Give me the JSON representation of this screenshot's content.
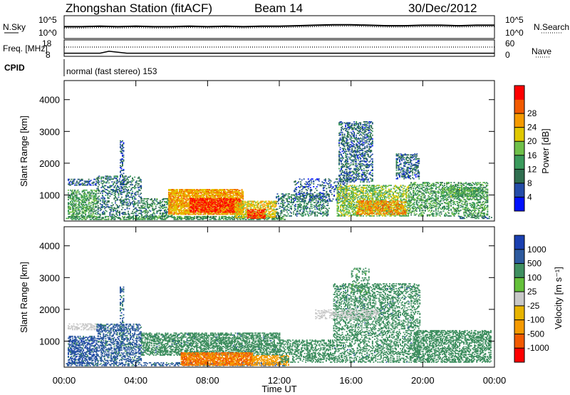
{
  "header": {
    "station": "Zhongshan Station (fitACF)",
    "beam": "Beam 14",
    "date": "30/Dec/2012"
  },
  "chart_data": [
    {
      "type": "line",
      "panel": "noise",
      "ylabel_left": "N.Sky",
      "ylabel_right": "N.Search",
      "yticks_left": [
        "10^5",
        "10^0"
      ],
      "yticks_right": [
        "10^5",
        "10^0"
      ],
      "series": [
        {
          "name": "N.Sky",
          "style": "solid",
          "x": [
            0,
            1,
            2,
            3,
            4,
            5,
            6,
            7,
            8,
            9,
            10,
            11,
            12,
            13,
            14,
            15,
            16,
            17,
            18,
            19,
            20,
            21,
            22,
            23,
            24
          ],
          "values": [
            2.6,
            2.6,
            2.7,
            2.6,
            2.7,
            2.6,
            2.6,
            2.7,
            2.6,
            2.7,
            2.6,
            2.7,
            2.7,
            2.8,
            2.9,
            3.0,
            3.0,
            2.9,
            2.8,
            2.8,
            2.9,
            2.9,
            2.8,
            2.9,
            2.9
          ]
        },
        {
          "name": "N.Search",
          "style": "dotted",
          "x": [
            0,
            1,
            2,
            3,
            4,
            5,
            6,
            7,
            8,
            9,
            10,
            11,
            12,
            13,
            14,
            15,
            16,
            17,
            18,
            19,
            20,
            21,
            22,
            23,
            24
          ],
          "values": [
            2.3,
            2.3,
            2.4,
            2.3,
            2.4,
            2.3,
            2.3,
            2.4,
            2.3,
            2.4,
            2.3,
            2.4,
            2.4,
            2.5,
            2.6,
            2.7,
            2.7,
            2.6,
            2.5,
            2.5,
            2.6,
            2.6,
            2.5,
            2.6,
            2.6
          ]
        }
      ]
    },
    {
      "type": "line",
      "panel": "frequency",
      "ylabel_left": "Freq. [MHz]",
      "ylabel_right": "Nave",
      "yticks_left": [
        "18",
        "8"
      ],
      "yticks_right": [
        "60",
        "0"
      ],
      "series": [
        {
          "name": "Freq.",
          "style": "solid",
          "x": [
            0,
            2,
            2.5,
            3,
            3.5,
            4,
            12,
            24
          ],
          "values": [
            9.4,
            9.4,
            11.0,
            10.2,
            9.4,
            9.4,
            9.4,
            9.4
          ]
        },
        {
          "name": "Nave",
          "style": "dotted",
          "x": [
            0,
            24
          ],
          "values": [
            39,
            39
          ]
        }
      ]
    },
    {
      "type": "heatmap",
      "panel": "cpid",
      "label": "CPID",
      "text": "normal (fast stereo) 153"
    },
    {
      "type": "heatmap",
      "panel": "power",
      "ylabel": "Slant Range [km]",
      "ylim": [
        180,
        4600
      ],
      "yticks": [
        "1000",
        "2000",
        "3000",
        "4000"
      ],
      "colorbar": {
        "label": "Power [dB]",
        "ticks": [
          "4",
          "8",
          "12",
          "16",
          "20",
          "24",
          "28"
        ],
        "range": [
          0,
          30
        ],
        "colors": [
          "#0011ff",
          "#244ca8",
          "#2f6e4f",
          "#3a9a5c",
          "#6fc04a",
          "#e0c800",
          "#f59a00",
          "#f25a00",
          "#ff0000"
        ]
      },
      "regions": [
        {
          "t": [
            0.1,
            12.3
          ],
          "r": [
            220,
            330
          ],
          "v": 11,
          "d": 0.6
        },
        {
          "t": [
            0.2,
            1.8
          ],
          "r": [
            300,
            1150
          ],
          "v": 12,
          "d": 0.5
        },
        {
          "t": [
            0.2,
            1.9
          ],
          "r": [
            1300,
            1500
          ],
          "v": 6,
          "d": 0.45
        },
        {
          "t": [
            1.8,
            4.3
          ],
          "r": [
            350,
            1600
          ],
          "v": 8,
          "d": 0.3
        },
        {
          "t": [
            3.1,
            3.3
          ],
          "r": [
            1100,
            2700
          ],
          "v": 6,
          "d": 0.35
        },
        {
          "t": [
            4.3,
            6.0
          ],
          "r": [
            300,
            900
          ],
          "v": 10,
          "d": 0.35
        },
        {
          "t": [
            5.8,
            10.0
          ],
          "r": [
            380,
            1180
          ],
          "v": 21,
          "d": 0.8
        },
        {
          "t": [
            7.0,
            9.8
          ],
          "r": [
            450,
            900
          ],
          "v": 27,
          "d": 0.7
        },
        {
          "t": [
            9.5,
            11.8
          ],
          "r": [
            280,
            800
          ],
          "v": 19,
          "d": 0.6
        },
        {
          "t": [
            10.2,
            11.2
          ],
          "r": [
            260,
            560
          ],
          "v": 26,
          "d": 0.7
        },
        {
          "t": [
            11.8,
            14.8
          ],
          "r": [
            330,
            1050
          ],
          "v": 9,
          "d": 0.35
        },
        {
          "t": [
            12.8,
            15.8
          ],
          "r": [
            800,
            1500
          ],
          "v": 6,
          "d": 0.22
        },
        {
          "t": [
            15.2,
            19.2
          ],
          "r": [
            330,
            1300
          ],
          "v": 15,
          "d": 0.5
        },
        {
          "t": [
            16.3,
            19.0
          ],
          "r": [
            380,
            820
          ],
          "v": 22,
          "d": 0.55
        },
        {
          "t": [
            15.3,
            17.2
          ],
          "r": [
            1400,
            3300
          ],
          "v": 7,
          "d": 0.4
        },
        {
          "t": [
            18.5,
            19.8
          ],
          "r": [
            1500,
            2300
          ],
          "v": 7,
          "d": 0.45
        },
        {
          "t": [
            19.2,
            23.6
          ],
          "r": [
            330,
            1400
          ],
          "v": 12,
          "d": 0.4
        },
        {
          "t": [
            21.0,
            23.2
          ],
          "r": [
            950,
            1250
          ],
          "v": 13,
          "d": 0.55
        },
        {
          "t": [
            22.0,
            23.8
          ],
          "r": [
            250,
            330
          ],
          "v": 8,
          "d": 0.4
        }
      ]
    },
    {
      "type": "heatmap",
      "panel": "velocity",
      "ylabel": "Slant Range [km]",
      "xlabel": "Time UT",
      "xticks": [
        "00:00",
        "04:00",
        "08:00",
        "12:00",
        "16:00",
        "20:00",
        "00:00"
      ],
      "ylim": [
        180,
        4600
      ],
      "yticks": [
        "1000",
        "2000",
        "3000",
        "4000"
      ],
      "colorbar": {
        "label": "Velocity [m s⁻¹]",
        "ticks": [
          "-1000",
          "-500",
          "-100",
          "-25",
          "25",
          "100",
          "500",
          "1000"
        ],
        "range": [
          -1250,
          1250
        ],
        "colors": [
          "#ff0000",
          "#f25a00",
          "#f59a00",
          "#e8b400",
          "#c8c8c8",
          "#64c03a",
          "#3f8f60",
          "#2d5a9e",
          "#1a3fb0"
        ]
      },
      "regions": [
        {
          "t": [
            0.1,
            12.3
          ],
          "r": [
            220,
            330
          ],
          "v": 700,
          "d": 0.45
        },
        {
          "t": [
            0.2,
            1.8
          ],
          "r": [
            300,
            1150
          ],
          "v": 800,
          "d": 0.55
        },
        {
          "t": [
            0.2,
            1.9
          ],
          "r": [
            1350,
            1550
          ],
          "v": 10,
          "d": 0.4
        },
        {
          "t": [
            1.8,
            4.3
          ],
          "r": [
            350,
            1550
          ],
          "v": 700,
          "d": 0.45
        },
        {
          "t": [
            3.1,
            3.3
          ],
          "r": [
            1100,
            2700
          ],
          "v": 700,
          "d": 0.35
        },
        {
          "t": [
            4.3,
            12.0
          ],
          "r": [
            550,
            1250
          ],
          "v": 350,
          "d": 0.55
        },
        {
          "t": [
            6.5,
            10.5
          ],
          "r": [
            230,
            650
          ],
          "v": -500,
          "d": 0.8
        },
        {
          "t": [
            10.5,
            12.5
          ],
          "r": [
            230,
            550
          ],
          "v": -300,
          "d": 0.55
        },
        {
          "t": [
            12.0,
            15.0
          ],
          "r": [
            330,
            1050
          ],
          "v": 300,
          "d": 0.4
        },
        {
          "t": [
            15.0,
            19.8
          ],
          "r": [
            330,
            2800
          ],
          "v": 350,
          "d": 0.35
        },
        {
          "t": [
            16.0,
            17.0
          ],
          "r": [
            2500,
            3300
          ],
          "v": 150,
          "d": 0.25
        },
        {
          "t": [
            19.5,
            23.8
          ],
          "r": [
            330,
            1350
          ],
          "v": 300,
          "d": 0.5
        },
        {
          "t": [
            14.0,
            17.5
          ],
          "r": [
            1700,
            2000
          ],
          "v": 5,
          "d": 0.3
        }
      ]
    }
  ]
}
